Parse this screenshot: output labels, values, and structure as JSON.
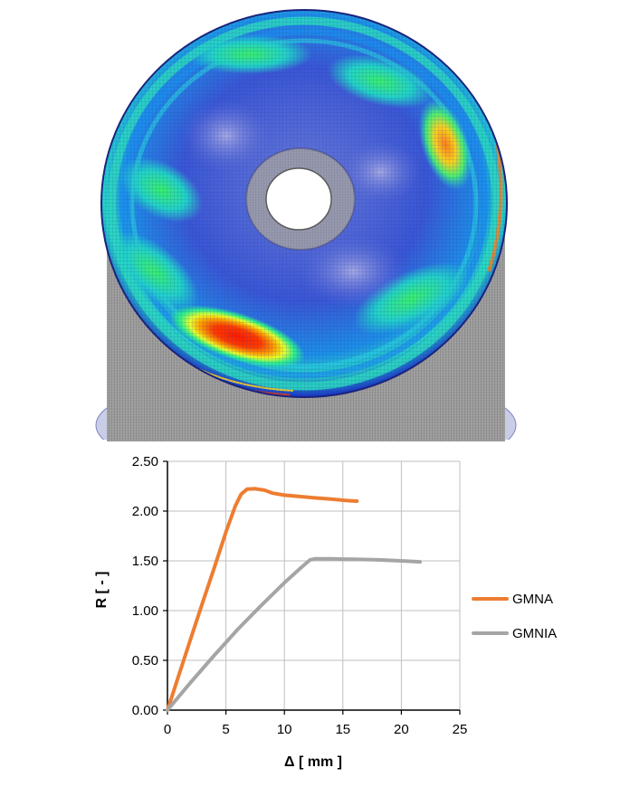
{
  "colors": {
    "gmna": "#ED7D31",
    "gmnia": "#A5A5A5",
    "grid": "#BFBFBF",
    "axis": "#000000",
    "shell_grey": "#9a9a9a"
  },
  "chart_data": {
    "type": "line",
    "title": "",
    "xlabel": "Δ [ mm ]",
    "ylabel": "R [ - ]",
    "xlim": [
      0,
      25
    ],
    "ylim": [
      0,
      2.5
    ],
    "xticks": [
      0,
      5,
      10,
      15,
      20,
      25
    ],
    "yticks": [
      0,
      0.5,
      1.0,
      1.5,
      2.0,
      2.5
    ],
    "xtick_labels": [
      "0",
      "5",
      "10",
      "15",
      "20",
      "25"
    ],
    "ytick_labels": [
      "0.00",
      "0.50",
      "1.00",
      "1.50",
      "2.00",
      "2.50"
    ],
    "grid": true,
    "legend_position": "right",
    "series": [
      {
        "name": "GMNA",
        "color": "#ED7D31",
        "x": [
          0,
          1,
          2,
          3,
          4,
          5,
          5.8,
          6.3,
          6.8,
          7.5,
          8.3,
          9.0,
          10.0,
          11.0,
          12.5,
          14.0,
          15.5,
          16.2
        ],
        "y": [
          0,
          0.36,
          0.72,
          1.08,
          1.43,
          1.79,
          2.05,
          2.17,
          2.22,
          2.225,
          2.21,
          2.18,
          2.16,
          2.15,
          2.135,
          2.12,
          2.105,
          2.1
        ]
      },
      {
        "name": "GMNIA",
        "color": "#A5A5A5",
        "x": [
          0,
          2,
          4,
          6,
          8,
          10,
          11.5,
          12.2,
          12.6,
          14,
          16,
          18,
          20,
          21.6
        ],
        "y": [
          0,
          0.28,
          0.55,
          0.81,
          1.05,
          1.28,
          1.44,
          1.51,
          1.52,
          1.52,
          1.515,
          1.51,
          1.5,
          1.49
        ]
      }
    ]
  }
}
